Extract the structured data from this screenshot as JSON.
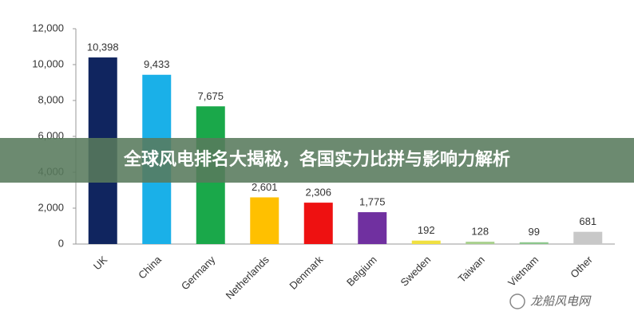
{
  "chart_data": {
    "type": "bar",
    "categories": [
      "UK",
      "China",
      "Germany",
      "Netherlands",
      "Denmark",
      "Belgium",
      "Sweden",
      "Taiwan",
      "Vietnam",
      "Other"
    ],
    "values": [
      10398,
      9433,
      7675,
      2601,
      2306,
      1775,
      192,
      128,
      99,
      681
    ],
    "value_labels": [
      "10,398",
      "9,433",
      "7,675",
      "2,601",
      "2,306",
      "1,775",
      "192",
      "128",
      "99",
      "681"
    ],
    "colors": [
      "#10255f",
      "#1ab0e8",
      "#1aa84a",
      "#ffc000",
      "#ee1111",
      "#7030a0",
      "#f0e040",
      "#a8d08d",
      "#8cc68c",
      "#c8c8c8"
    ],
    "ylim": [
      0,
      12000
    ],
    "yticks": [
      {
        "value": 0,
        "label": "0"
      },
      {
        "value": 2000,
        "label": "2,000"
      },
      {
        "value": 4000,
        "label": "4,000"
      },
      {
        "value": 6000,
        "label": "6,000"
      },
      {
        "value": 8000,
        "label": "8,000"
      },
      {
        "value": 10000,
        "label": "10,000"
      },
      {
        "value": 12000,
        "label": "12,000"
      }
    ],
    "banner": "全球风电排名大揭秘，各国实力比拼与影响力解析",
    "watermark": "龙船风电网"
  }
}
